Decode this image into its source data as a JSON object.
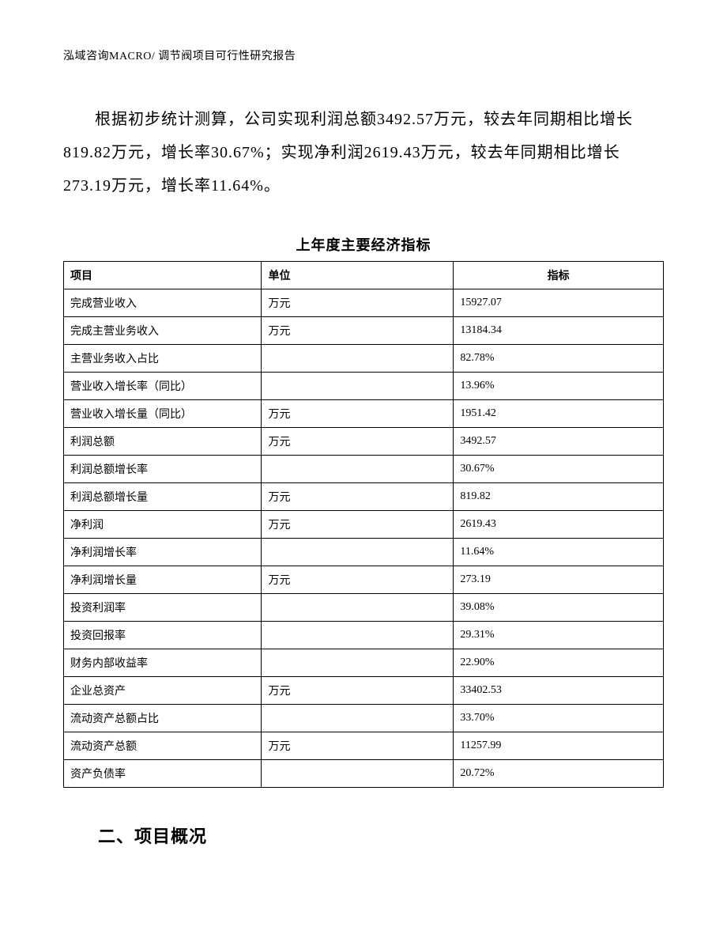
{
  "header": {
    "left": "泓域咨询MACRO/    调节阀项目可行性研究报告"
  },
  "paragraph": "根据初步统计测算，公司实现利润总额3492.57万元，较去年同期相比增长819.82万元，增长率30.67%；实现净利润2619.43万元，较去年同期相比增长273.19万元，增长率11.64%。",
  "section_title": "二、项目概况",
  "table": {
    "title": "上年度主要经济指标",
    "columns": [
      "项目",
      "单位",
      "指标"
    ],
    "column_widths_pct": [
      33,
      32,
      35
    ],
    "header_align": [
      "left",
      "left",
      "center"
    ],
    "font_size_pt": 10.5,
    "border_color": "#000000",
    "background_color": "#ffffff",
    "rows": [
      {
        "item": "完成营业收入",
        "unit": "万元",
        "value": "15927.07"
      },
      {
        "item": "完成主营业务收入",
        "unit": "万元",
        "value": "13184.34"
      },
      {
        "item": "主营业务收入占比",
        "unit": "",
        "value": "82.78%"
      },
      {
        "item": "营业收入增长率（同比）",
        "unit": "",
        "value": "13.96%"
      },
      {
        "item": "营业收入增长量（同比）",
        "unit": "万元",
        "value": "1951.42"
      },
      {
        "item": "利润总额",
        "unit": "万元",
        "value": "3492.57"
      },
      {
        "item": "利润总额增长率",
        "unit": "",
        "value": "30.67%"
      },
      {
        "item": "利润总额增长量",
        "unit": "万元",
        "value": "819.82"
      },
      {
        "item": "净利润",
        "unit": "万元",
        "value": "2619.43"
      },
      {
        "item": "净利润增长率",
        "unit": "",
        "value": "11.64%"
      },
      {
        "item": "净利润增长量",
        "unit": "万元",
        "value": "273.19"
      },
      {
        "item": "投资利润率",
        "unit": "",
        "value": "39.08%"
      },
      {
        "item": "投资回报率",
        "unit": "",
        "value": "29.31%"
      },
      {
        "item": "财务内部收益率",
        "unit": "",
        "value": "22.90%"
      },
      {
        "item": "企业总资产",
        "unit": "万元",
        "value": "33402.53"
      },
      {
        "item": "流动资产总额占比",
        "unit": "",
        "value": "33.70%"
      },
      {
        "item": "流动资产总额",
        "unit": "万元",
        "value": "11257.99"
      },
      {
        "item": "资产负债率",
        "unit": "",
        "value": "20.72%"
      }
    ]
  },
  "styles": {
    "page_bg": "#ffffff",
    "text_color": "#000000",
    "body_fontsize_pt": 15,
    "body_line_height": 2.1,
    "header_fontsize_pt": 10.5,
    "table_title_fontsize_pt": 14,
    "section_title_fontsize_pt": 16
  }
}
